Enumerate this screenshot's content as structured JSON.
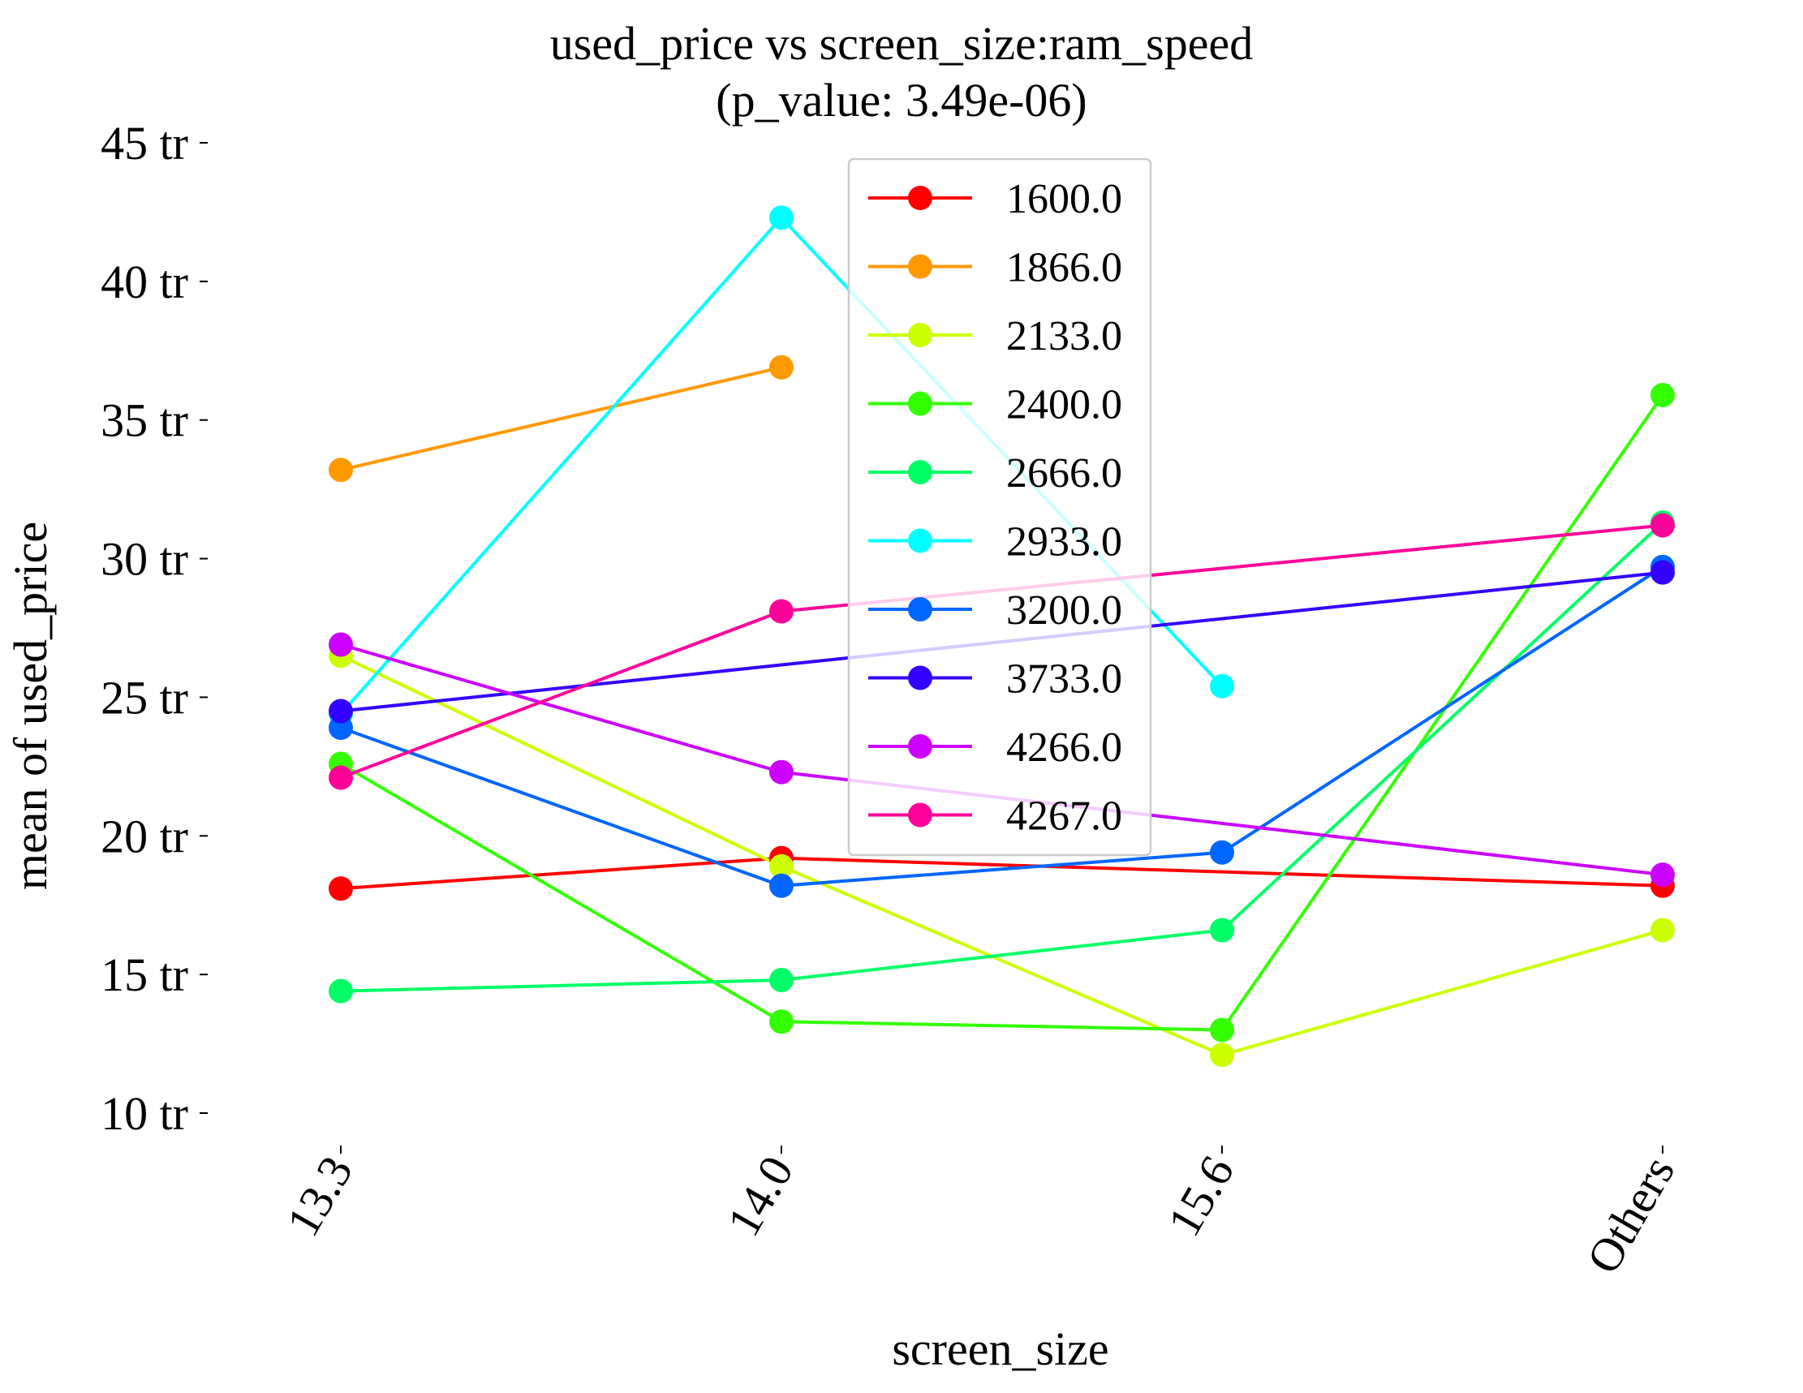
{
  "chart_data": {
    "type": "line",
    "title": [
      "used_price vs screen_size:ram_speed",
      "(p_value: 3.49e-06)"
    ],
    "xlabel": "screen_size",
    "ylabel": "mean of used_price",
    "categories": [
      "13.3",
      "14.0",
      "15.6",
      "Others"
    ],
    "ylim": [
      10,
      45
    ],
    "yticks": [
      10,
      15,
      20,
      25,
      30,
      35,
      40,
      45
    ],
    "ytick_labels": [
      "10 tr",
      "15 tr",
      "20 tr",
      "25 tr",
      "30 tr",
      "35 tr",
      "40 tr",
      "45 tr"
    ],
    "grid": false,
    "legend_position": "top-center",
    "series": [
      {
        "name": "1600.0",
        "color": "#ff0000",
        "values": [
          18.1,
          19.2,
          null,
          18.2
        ]
      },
      {
        "name": "1866.0",
        "color": "#ff9900",
        "values": [
          33.2,
          36.9,
          null,
          null
        ]
      },
      {
        "name": "2133.0",
        "color": "#ccff00",
        "values": [
          26.5,
          18.9,
          12.1,
          16.6
        ]
      },
      {
        "name": "2400.0",
        "color": "#33ff00",
        "values": [
          22.6,
          13.3,
          13.0,
          35.9
        ]
      },
      {
        "name": "2666.0",
        "color": "#00ff66",
        "values": [
          14.4,
          14.8,
          16.6,
          31.3
        ]
      },
      {
        "name": "2933.0",
        "color": "#00ffff",
        "values": [
          24.4,
          42.3,
          25.4,
          null
        ]
      },
      {
        "name": "3200.0",
        "color": "#0066ff",
        "values": [
          23.9,
          18.2,
          19.4,
          29.7
        ]
      },
      {
        "name": "3733.0",
        "color": "#3300ff",
        "values": [
          24.5,
          null,
          null,
          29.5
        ]
      },
      {
        "name": "4266.0",
        "color": "#cc00ff",
        "values": [
          26.9,
          22.3,
          null,
          18.6
        ]
      },
      {
        "name": "4267.0",
        "color": "#ff0099",
        "values": [
          22.1,
          28.1,
          null,
          31.2
        ]
      }
    ]
  }
}
